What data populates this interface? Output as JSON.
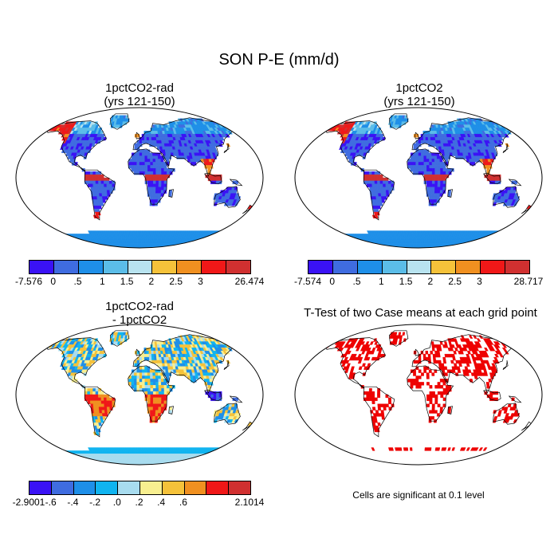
{
  "main_title": "SON P-E (mm/d)",
  "panels": [
    {
      "id": "p1",
      "title1": "1pctCO2-rad",
      "title2": "(yrs 121-150)",
      "colorbar": {
        "colors": [
          "#3a12f5",
          "#3f6ce0",
          "#1e8fe8",
          "#5bbde8",
          "#b8e3ef",
          "#f5c23a",
          "#f09020",
          "#f01818",
          "#d03030"
        ],
        "labels": [
          "-7.576",
          "0",
          ".5",
          "1",
          "1.5",
          "2",
          "2.5",
          "3",
          "26.474"
        ]
      }
    },
    {
      "id": "p2",
      "title1": "1pctCO2",
      "title2": "(yrs 121-150)",
      "colorbar": {
        "colors": [
          "#3a12f5",
          "#3f6ce0",
          "#1e8fe8",
          "#5bbde8",
          "#b8e3ef",
          "#f5c23a",
          "#f09020",
          "#f01818",
          "#d03030"
        ],
        "labels": [
          "-7.574",
          "0",
          ".5",
          "1",
          "1.5",
          "2",
          "2.5",
          "3",
          "28.717"
        ]
      }
    },
    {
      "id": "p3",
      "title1": "1pctCO2-rad",
      "title2": "- 1pctCO2",
      "colorbar": {
        "colors": [
          "#3a12f5",
          "#3f6ce0",
          "#1e8fe8",
          "#10b4f0",
          "#a8dcef",
          "#f8ef90",
          "#f5c23a",
          "#f09020",
          "#f01818",
          "#d03030"
        ],
        "labels": [
          "-2.9001",
          "-.6",
          "-.4",
          "-.2",
          ".0",
          ".2",
          ".4",
          ".6",
          "2.1014"
        ]
      }
    },
    {
      "id": "p4",
      "title1": "T-Test of two Case means at each grid point",
      "title2": ""
    }
  ],
  "note": "Cells are significant at 0.1 level"
}
